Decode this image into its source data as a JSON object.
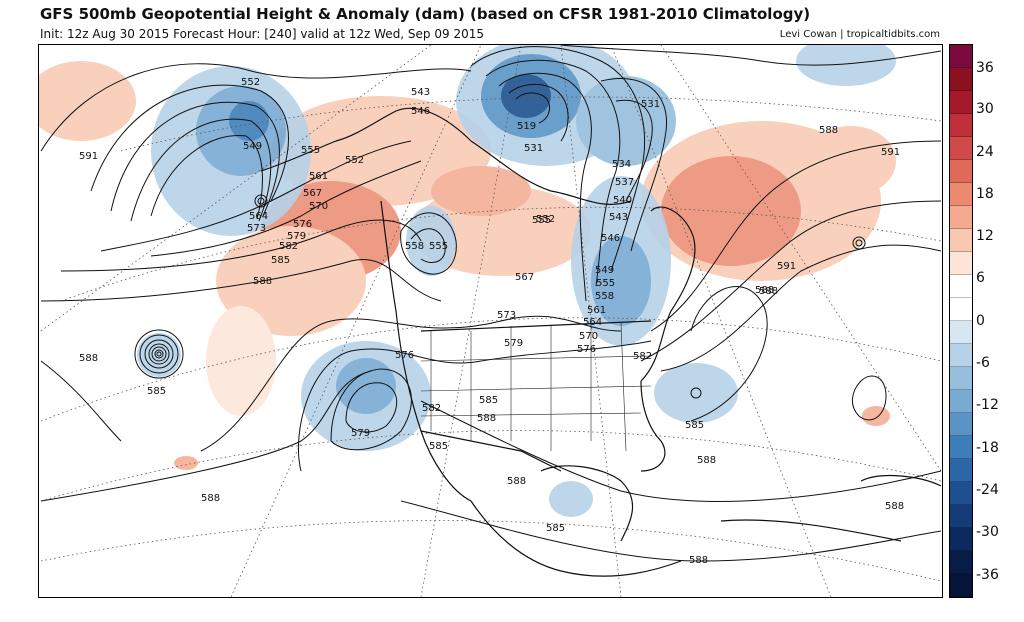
{
  "header": {
    "title": "GFS 500mb Geopotential Height & Anomaly (dam) (based on CFSR 1981-2010 Climatology)",
    "subtitle": "Init: 12z Aug 30 2015   Forecast Hour: [240]   valid at 12z Wed, Sep 09 2015",
    "credit": "Levi Cowan | tropicaltidbits.com"
  },
  "colorbar": {
    "tick_labels": [
      "36",
      "30",
      "24",
      "18",
      "12",
      "6",
      "0",
      "-6",
      "-12",
      "-18",
      "-24",
      "-30",
      "-36"
    ],
    "colors": [
      "#7a0a40",
      "#8b1020",
      "#a51a2a",
      "#c0303a",
      "#d04a4a",
      "#e06a5a",
      "#ec8a70",
      "#f4aa90",
      "#f8c8b0",
      "#fce4d6",
      "#ffffff",
      "#ffffff",
      "#d6e6f2",
      "#b6d2e8",
      "#96bedd",
      "#78aad2",
      "#5a94c6",
      "#3e7eb8",
      "#2c66a6",
      "#1e5090",
      "#143c78",
      "#0c2a5e",
      "#081c48",
      "#06143a"
    ]
  },
  "contour_labels": [
    "552",
    "549",
    "564",
    "573",
    "591",
    "555",
    "561",
    "567",
    "570",
    "576",
    "579",
    "582",
    "585",
    "588",
    "552",
    "543",
    "546",
    "555",
    "558",
    "555",
    "519",
    "531",
    "531",
    "534",
    "537",
    "540",
    "543",
    "546",
    "549",
    "552",
    "555",
    "558",
    "561",
    "564",
    "567",
    "570",
    "573",
    "576",
    "579",
    "582",
    "585",
    "588",
    "591",
    "591",
    "588",
    "585",
    "588",
    "588",
    "585",
    "588",
    "588",
    "588",
    "585",
    "576",
    "579",
    "582",
    "588",
    "585",
    "588",
    "588"
  ]
}
